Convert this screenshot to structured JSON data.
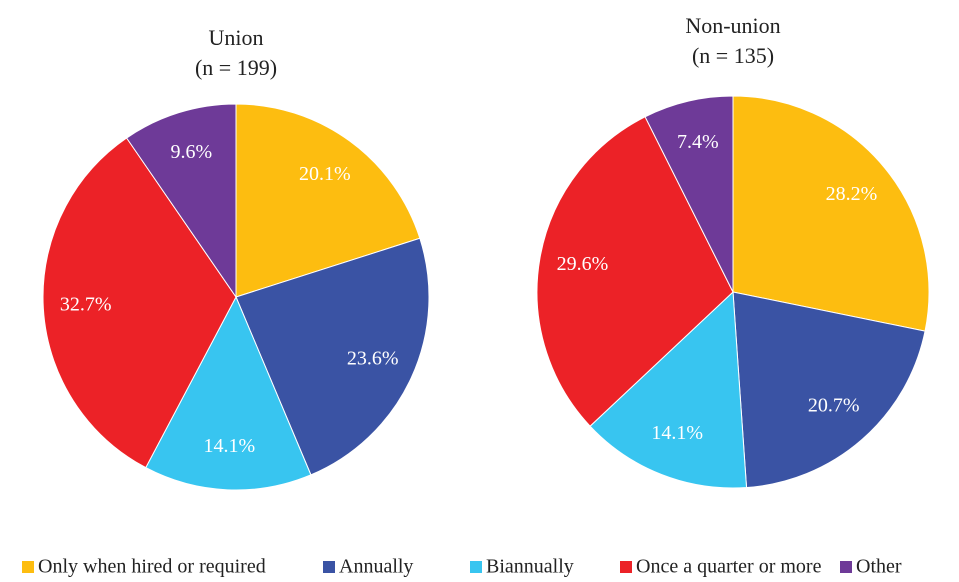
{
  "chart_data": [
    {
      "type": "pie",
      "title": "Union",
      "subtitle": "(n = 199)",
      "categories": [
        "Only when hired or required",
        "Annually",
        "Biannually",
        "Once a quarter or more",
        "Other"
      ],
      "colors": [
        "#fdbd10",
        "#3a53a4",
        "#38c5f0",
        "#ec2227",
        "#6e3a98"
      ],
      "values": [
        20.1,
        23.6,
        14.1,
        32.7,
        9.6
      ],
      "value_labels": [
        "20.1%",
        "23.6%",
        "14.1%",
        "32.7%",
        "9.6%"
      ]
    },
    {
      "type": "pie",
      "title": "Non-union",
      "subtitle": "(n = 135)",
      "categories": [
        "Only when hired or required",
        "Annually",
        "Biannually",
        "Once a quarter or more",
        "Other"
      ],
      "colors": [
        "#fdbd10",
        "#3a53a4",
        "#38c5f0",
        "#ec2227",
        "#6e3a98"
      ],
      "values": [
        28.2,
        20.7,
        14.1,
        29.6,
        7.4
      ],
      "value_labels": [
        "28.2%",
        "20.7%",
        "14.1%",
        "29.6%",
        "7.4%"
      ]
    }
  ]
}
